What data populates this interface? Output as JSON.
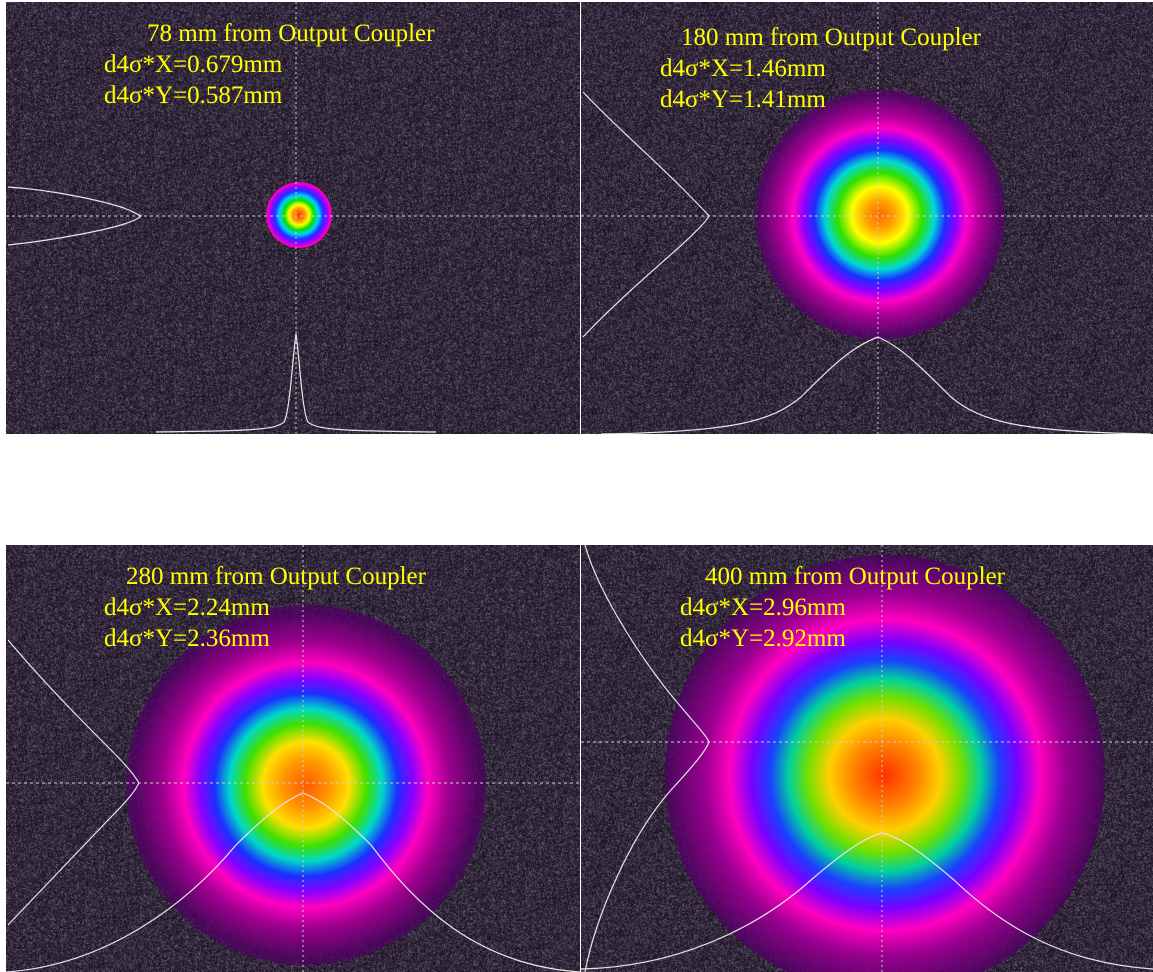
{
  "panels": [
    {
      "title": "78 mm from Output Coupler",
      "d4sigma_x": "d4σ*X=0.679mm",
      "d4sigma_y": "d4σ*Y=0.587mm"
    },
    {
      "title": "180 mm from Output Coupler",
      "d4sigma_x": "d4σ*X=1.46mm",
      "d4sigma_y": "d4σ*Y=1.41mm"
    },
    {
      "title": "280 mm from Output Coupler",
      "d4sigma_x": "d4σ*X=2.24mm",
      "d4sigma_y": "d4σ*Y=2.36mm"
    },
    {
      "title": "400 mm from Output Coupler",
      "d4sigma_x": "d4σ*X=2.96mm",
      "d4sigma_y": "d4σ*Y=2.92mm"
    }
  ],
  "colors": {
    "caption_text": "#ffff00",
    "background_noise": "#2d2133",
    "profile_line": "#e6e6e6",
    "crosshair": "#cfcfcf"
  }
}
